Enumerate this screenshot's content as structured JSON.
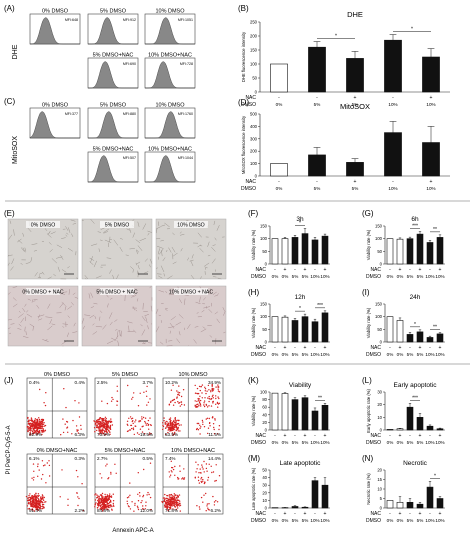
{
  "panelA": {
    "letter": "(A)",
    "row_label": "DHE",
    "histograms": [
      {
        "title": "0% DMSO",
        "mfi": "MFI:648"
      },
      {
        "title": "5% DMSO",
        "mfi": "MFI:912"
      },
      {
        "title": "10% DMSO",
        "mfi": "MFI:1051"
      },
      {
        "title": "5% DMSO+NAC",
        "mfi": "MFI:690"
      },
      {
        "title": "10% DMSO+NAC",
        "mfi": "MFI:728"
      }
    ]
  },
  "panelC": {
    "letter": "(C)",
    "row_label": "MitoSOX",
    "histograms": [
      {
        "title": "0% DMSO",
        "mfi": "MFI:377"
      },
      {
        "title": "5% DMSO",
        "mfi": "MFI:880"
      },
      {
        "title": "10% DMSO",
        "mfi": "MFI:1760"
      },
      {
        "title": "5% DMSO+NAC",
        "mfi": "MFI:507"
      },
      {
        "title": "10% DMSO+NAC",
        "mfi": "MFI:1044"
      }
    ]
  },
  "panelE": {
    "letter": "(E)",
    "images": [
      {
        "label": "0% DMSO"
      },
      {
        "label": "5% DMSO"
      },
      {
        "label": "10% DMSO"
      },
      {
        "label": "0% DMSO + NAC"
      },
      {
        "label": "5% DMSO + NAC"
      },
      {
        "label": "10% DMSO + NAC"
      }
    ]
  },
  "panelJ": {
    "letter": "(J)",
    "yaxis": "PI PerCP-Cy5-5-A",
    "xaxis": "Annexin APC-A",
    "plots": [
      {
        "title": "0% DMSO",
        "q": [
          "0.4%",
          "0.4%",
          "92.9%",
          "6.3%"
        ]
      },
      {
        "title": "5% DMSO",
        "q": [
          "2.5%",
          "3.7%",
          "73.9%",
          "19.5%"
        ]
      },
      {
        "title": "10% DMSO",
        "q": [
          "10.2%",
          "34.9%",
          "53.5%",
          "11.5%"
        ]
      },
      {
        "title": "0% DMSO+NAC",
        "q": [
          "6.1%",
          "0.3%",
          "91.4%",
          "2.2%"
        ]
      },
      {
        "title": "5% DMSO+NAC",
        "q": [
          "2.7%",
          "0.5%",
          "84.8%",
          "12.0%"
        ]
      },
      {
        "title": "10% DMSO+NAC",
        "q": [
          "7.4%",
          "14.4%",
          "71.8%",
          "6.2%"
        ]
      }
    ]
  },
  "bar_labels": {
    "nac_row": "NAC",
    "dmso_row": "DMSO",
    "nac_values": [
      "-",
      "-",
      "+",
      "-",
      "+"
    ],
    "dmso_values": [
      "0%",
      "5%",
      "5%",
      "10%",
      "10%"
    ],
    "nac_values6": [
      "-",
      "+",
      "-",
      "+",
      "-",
      "+"
    ],
    "dmso_values6": [
      "0%",
      "0%",
      "5%",
      "5%",
      "10%",
      "10%"
    ]
  },
  "chart_data": [
    {
      "id": "B",
      "letter": "(B)",
      "type": "bar",
      "title": "DHE",
      "ylabel": "DHE fluorescence intensity",
      "ylim": [
        0,
        250
      ],
      "ticks": [
        0,
        50,
        100,
        150,
        200,
        250
      ],
      "values": [
        100,
        160,
        120,
        185,
        125
      ],
      "errors": [
        0,
        20,
        25,
        20,
        30
      ],
      "sig": [
        {
          "from": 1,
          "to": 2,
          "text": "*"
        },
        {
          "from": 3,
          "to": 4,
          "text": "*"
        }
      ]
    },
    {
      "id": "D",
      "letter": "(D)",
      "type": "bar",
      "title": "MitoSOX",
      "ylabel": "MitoSOX fluorescence intensity",
      "ylim": [
        0,
        500
      ],
      "ticks": [
        0,
        100,
        200,
        300,
        400,
        500
      ],
      "values": [
        100,
        170,
        110,
        350,
        270
      ],
      "errors": [
        0,
        60,
        30,
        90,
        130
      ],
      "sig": []
    },
    {
      "id": "F",
      "letter": "(F)",
      "type": "bar",
      "title": "3h",
      "ylabel": "Viability rate (%)",
      "ylim": [
        0,
        150
      ],
      "ticks": [
        0,
        50,
        100,
        150
      ],
      "values": [
        100,
        100,
        105,
        120,
        95,
        110
      ],
      "errors": [
        0,
        5,
        8,
        20,
        10,
        8
      ],
      "sig": [
        {
          "from": 2,
          "to": 3,
          "text": "*"
        }
      ]
    },
    {
      "id": "G",
      "letter": "(G)",
      "type": "bar",
      "title": "6h",
      "ylabel": "Viability rate (%)",
      "ylim": [
        0,
        150
      ],
      "ticks": [
        0,
        50,
        100,
        150
      ],
      "values": [
        100,
        98,
        100,
        118,
        85,
        105
      ],
      "errors": [
        0,
        5,
        6,
        10,
        8,
        10
      ],
      "sig": [
        {
          "from": 2,
          "to": 3,
          "text": "***"
        },
        {
          "from": 4,
          "to": 5,
          "text": "**"
        }
      ]
    },
    {
      "id": "H",
      "letter": "(H)",
      "type": "bar",
      "title": "12h",
      "ylabel": "Viability rate (%)",
      "ylim": [
        0,
        150
      ],
      "ticks": [
        0,
        50,
        100,
        150
      ],
      "values": [
        100,
        98,
        85,
        100,
        80,
        115
      ],
      "errors": [
        0,
        5,
        8,
        10,
        10,
        8
      ],
      "sig": [
        {
          "from": 2,
          "to": 3,
          "text": "*"
        },
        {
          "from": 4,
          "to": 5,
          "text": "***"
        }
      ]
    },
    {
      "id": "I",
      "letter": "(I)",
      "type": "bar",
      "title": "24h",
      "ylabel": "Viability rate (%)",
      "ylim": [
        0,
        150
      ],
      "ticks": [
        0,
        50,
        100,
        150
      ],
      "values": [
        100,
        85,
        30,
        40,
        18,
        32
      ],
      "errors": [
        0,
        10,
        8,
        8,
        5,
        5
      ],
      "sig": [
        {
          "from": 2,
          "to": 3,
          "text": "*"
        },
        {
          "from": 4,
          "to": 5,
          "text": "**"
        }
      ]
    },
    {
      "id": "K",
      "letter": "(K)",
      "type": "bar",
      "title": "Viability",
      "ylabel": "Viability rate (%)",
      "ylim": [
        0,
        100
      ],
      "ticks": [
        0,
        20,
        40,
        60,
        80,
        100
      ],
      "values": [
        97,
        96,
        80,
        85,
        50,
        65
      ],
      "errors": [
        0,
        2,
        5,
        5,
        8,
        5
      ],
      "sig": [
        {
          "from": 4,
          "to": 5,
          "text": "**"
        }
      ]
    },
    {
      "id": "L",
      "letter": "(L)",
      "type": "bar",
      "title": "Early apoptotic",
      "ylabel": "Early apoptotic rate (%)",
      "ylim": [
        0,
        30
      ],
      "ticks": [
        0,
        10,
        20,
        30
      ],
      "values": [
        0.5,
        1,
        18,
        10,
        3,
        1
      ],
      "errors": [
        0,
        0.3,
        3,
        3,
        1,
        0.5
      ],
      "sig": [
        {
          "from": 2,
          "to": 3,
          "text": "***"
        }
      ]
    },
    {
      "id": "M",
      "letter": "(M)",
      "type": "bar",
      "title": "Late apoptotic",
      "ylabel": "Late apoptotic rate (%)",
      "ylim": [
        0,
        50
      ],
      "ticks": [
        0,
        10,
        20,
        30,
        40,
        50
      ],
      "values": [
        0.5,
        0.5,
        2,
        1,
        36,
        30
      ],
      "errors": [
        0,
        0.2,
        1,
        0.5,
        4,
        10
      ],
      "sig": []
    },
    {
      "id": "N",
      "letter": "(N)",
      "type": "bar",
      "title": "Necrotic",
      "ylabel": "Necrotic rate (%)",
      "ylim": [
        0,
        20
      ],
      "ticks": [
        0,
        5,
        10,
        15,
        20
      ],
      "values": [
        4,
        3,
        3,
        2,
        11,
        5
      ],
      "errors": [
        0,
        3,
        2,
        1,
        3,
        1
      ],
      "sig": [
        {
          "from": 4,
          "to": 5,
          "text": "*"
        }
      ]
    }
  ]
}
